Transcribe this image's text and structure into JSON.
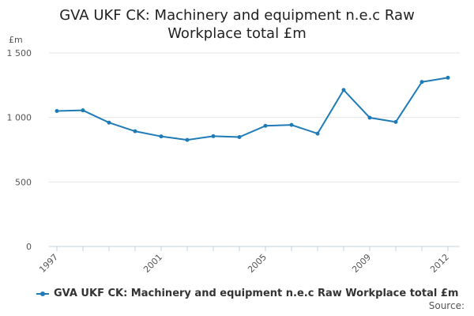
{
  "chart_data": {
    "type": "line",
    "title_lines": [
      "GVA UKF CK: Machinery and equipment n.e.c Raw",
      "Workplace total £m"
    ],
    "ylabel": "£m",
    "xlabel": "",
    "x": [
      1997,
      1998,
      1999,
      2000,
      2001,
      2002,
      2003,
      2004,
      2005,
      2006,
      2007,
      2008,
      2009,
      2010,
      2011,
      2012
    ],
    "x_tick_labels": [
      "1997",
      "2001",
      "2005",
      "2009",
      "2012"
    ],
    "x_tick_values": [
      1997,
      2001,
      2005,
      2009,
      2012
    ],
    "xlim": [
      1997,
      2012
    ],
    "y_tick_labels": [
      "0",
      "500",
      "1 000",
      "1 500"
    ],
    "y_tick_values": [
      0,
      500,
      1000,
      1500
    ],
    "ylim": [
      0,
      1500
    ],
    "grid": true,
    "legend_position": "bottom",
    "series": [
      {
        "name": "GVA UKF CK: Machinery and equipment n.e.c Raw Workplace total £m",
        "color": "#1f7bb6",
        "values": [
          1050,
          1055,
          960,
          893,
          853,
          826,
          855,
          848,
          935,
          942,
          875,
          1213,
          998,
          965,
          1275,
          1308
        ]
      }
    ],
    "source_label": "Source:"
  }
}
